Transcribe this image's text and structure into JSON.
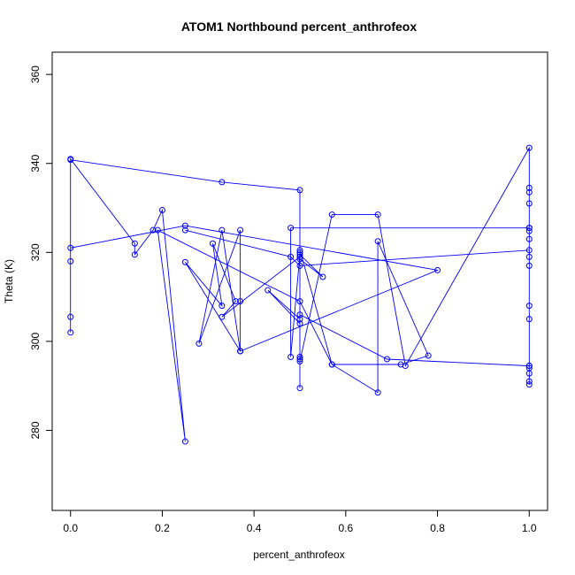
{
  "chart_data": {
    "type": "line",
    "title": "ATOM1 Northbound percent_anthrofeox",
    "xlabel": "percent_anthrofeox",
    "ylabel": "Theta (K)",
    "xlim": [
      -0.04,
      1.04
    ],
    "ylim": [
      262,
      365
    ],
    "xticks": [
      "0.0",
      "0.2",
      "0.4",
      "0.6",
      "0.8",
      "1.0"
    ],
    "yticks": [
      "280",
      "300",
      "320",
      "340",
      "360"
    ],
    "grid": false,
    "legend": "none",
    "color": "#0000ff",
    "marker": "open-circle",
    "series": [
      {
        "x": [
          0.0,
          0.33,
          0.5,
          0.5,
          0.5,
          0.5,
          0.57,
          0.67,
          0.73,
          1.0,
          1.0,
          1.0,
          1.0,
          1.0,
          1.0,
          1.0,
          1.0,
          1.0,
          1.0,
          1.0,
          1.0,
          1.0,
          1.0,
          1.0,
          1.0,
          1.0,
          0.48,
          0.48,
          0.5,
          0.55,
          0.5,
          0.5,
          0.43,
          0.5,
          0.5,
          0.5,
          0.5,
          0.33,
          0.36,
          0.31,
          0.33,
          0.25,
          0.37,
          0.37,
          0.33,
          0.28,
          0.37,
          0.37,
          0.37,
          0.8,
          0.25,
          0.0,
          0.0,
          0.0,
          0.0,
          0.0,
          0.14,
          0.14,
          0.18,
          0.2,
          0.25,
          0.19,
          0.5,
          0.57,
          0.67,
          0.67,
          0.78,
          0.72,
          0.57,
          0.5,
          0.5,
          0.69,
          1.0,
          1.0,
          0.5,
          0.48,
          0.25
        ],
        "y": [
          340.8,
          335.8,
          334.0,
          320.0,
          296.0,
          295.5,
          328.5,
          328.5,
          294.5,
          343.5,
          334.5,
          333.5,
          331.0,
          325.5,
          324.8,
          323.0,
          319.0,
          317.0,
          308.0,
          305.0,
          294.5,
          294.0,
          292.8,
          291.0,
          290.3,
          325.5,
          325.5,
          296.5,
          319.5,
          314.5,
          318.5,
          305.0,
          311.5,
          304.0,
          296.5,
          289.5,
          319.0,
          305.5,
          309.0,
          322.0,
          308.0,
          317.8,
          297.8,
          297.8,
          325.0,
          299.5,
          325.0,
          309.0,
          297.8,
          316.0,
          326.0,
          321.0,
          318.0,
          305.5,
          302.0,
          341.0,
          322.0,
          319.5,
          325.0,
          329.5,
          277.5,
          325.0,
          309.0,
          294.8,
          288.5,
          322.5,
          296.8,
          294.8,
          294.8,
          320.5,
          306.0,
          296.0,
          294.5,
          320.5,
          317.0,
          319.0,
          325.0
        ]
      }
    ]
  }
}
